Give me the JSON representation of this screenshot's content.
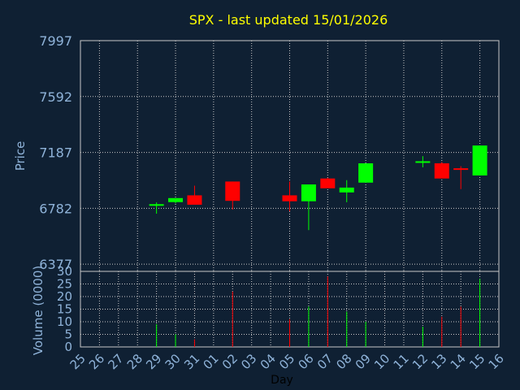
{
  "chart_data": [
    {
      "type": "candlestick",
      "title": "SPX - last updated 15/01/2026",
      "ylabel": "Price",
      "xlabel": "",
      "ylim": [
        6325,
        7997
      ],
      "yticks": [
        7997,
        7592,
        7187,
        6782,
        6377
      ],
      "grid": true,
      "colors": {
        "up": "#00ff00",
        "down": "#ff0000",
        "title": "#ffff00",
        "axis_text": "#8fb3d9",
        "background": "#0f2033",
        "grid": "#c8c8c8"
      },
      "x": [
        "25",
        "26",
        "27",
        "28",
        "29",
        "30",
        "31",
        "01",
        "02",
        "03",
        "04",
        "05",
        "06",
        "07",
        "08",
        "09",
        "10",
        "11",
        "12",
        "13",
        "14",
        "15",
        "16"
      ],
      "candles": [
        {
          "day": "29",
          "open": 6800,
          "high": 6825,
          "low": 6743,
          "close": 6812
        },
        {
          "day": "30",
          "open": 6827,
          "high": 6855,
          "low": 6818,
          "close": 6856
        },
        {
          "day": "31",
          "open": 6876,
          "high": 6946,
          "low": 6815,
          "close": 6808
        },
        {
          "day": "02",
          "open": 6976,
          "high": 6976,
          "low": 6772,
          "close": 6836
        },
        {
          "day": "05",
          "open": 6876,
          "high": 6976,
          "low": 6760,
          "close": 6833
        },
        {
          "day": "06",
          "open": 6833,
          "high": 6955,
          "low": 6624,
          "close": 6955
        },
        {
          "day": "07",
          "open": 6998,
          "high": 7003,
          "low": 6932,
          "close": 6927
        },
        {
          "day": "08",
          "open": 6897,
          "high": 6986,
          "low": 6826,
          "close": 6932
        },
        {
          "day": "09",
          "open": 6968,
          "high": 7108,
          "low": 6968,
          "close": 7108
        },
        {
          "day": "12",
          "open": 7117,
          "high": 7160,
          "low": 7079,
          "close": 7123
        },
        {
          "day": "13",
          "open": 7108,
          "high": 7117,
          "low": 6998,
          "close": 6998
        },
        {
          "day": "14",
          "open": 7072,
          "high": 7087,
          "low": 6921,
          "close": 7064
        },
        {
          "day": "15",
          "open": 7020,
          "high": 7237,
          "low": 7020,
          "close": 7237
        }
      ]
    },
    {
      "type": "bar",
      "ylabel": "Volume (0000)",
      "xlabel": "Day",
      "ylim": [
        0,
        30
      ],
      "yticks": [
        0,
        5,
        10,
        15,
        20,
        25,
        30
      ],
      "grid": true,
      "x": [
        "25",
        "26",
        "27",
        "28",
        "29",
        "30",
        "31",
        "01",
        "02",
        "03",
        "04",
        "05",
        "06",
        "07",
        "08",
        "09",
        "10",
        "11",
        "12",
        "13",
        "14",
        "15",
        "16"
      ],
      "volumes": [
        {
          "day": "29",
          "value": 9,
          "direction": "up"
        },
        {
          "day": "30",
          "value": 5,
          "direction": "up"
        },
        {
          "day": "31",
          "value": 3,
          "direction": "down"
        },
        {
          "day": "02",
          "value": 22,
          "direction": "down"
        },
        {
          "day": "05",
          "value": 11,
          "direction": "down"
        },
        {
          "day": "06",
          "value": 16,
          "direction": "up"
        },
        {
          "day": "07",
          "value": 28,
          "direction": "down"
        },
        {
          "day": "08",
          "value": 14,
          "direction": "up"
        },
        {
          "day": "09",
          "value": 10,
          "direction": "up"
        },
        {
          "day": "12",
          "value": 8,
          "direction": "up"
        },
        {
          "day": "13",
          "value": 12,
          "direction": "down"
        },
        {
          "day": "14",
          "value": 16,
          "direction": "down"
        },
        {
          "day": "15",
          "value": 27,
          "direction": "up"
        }
      ]
    }
  ]
}
